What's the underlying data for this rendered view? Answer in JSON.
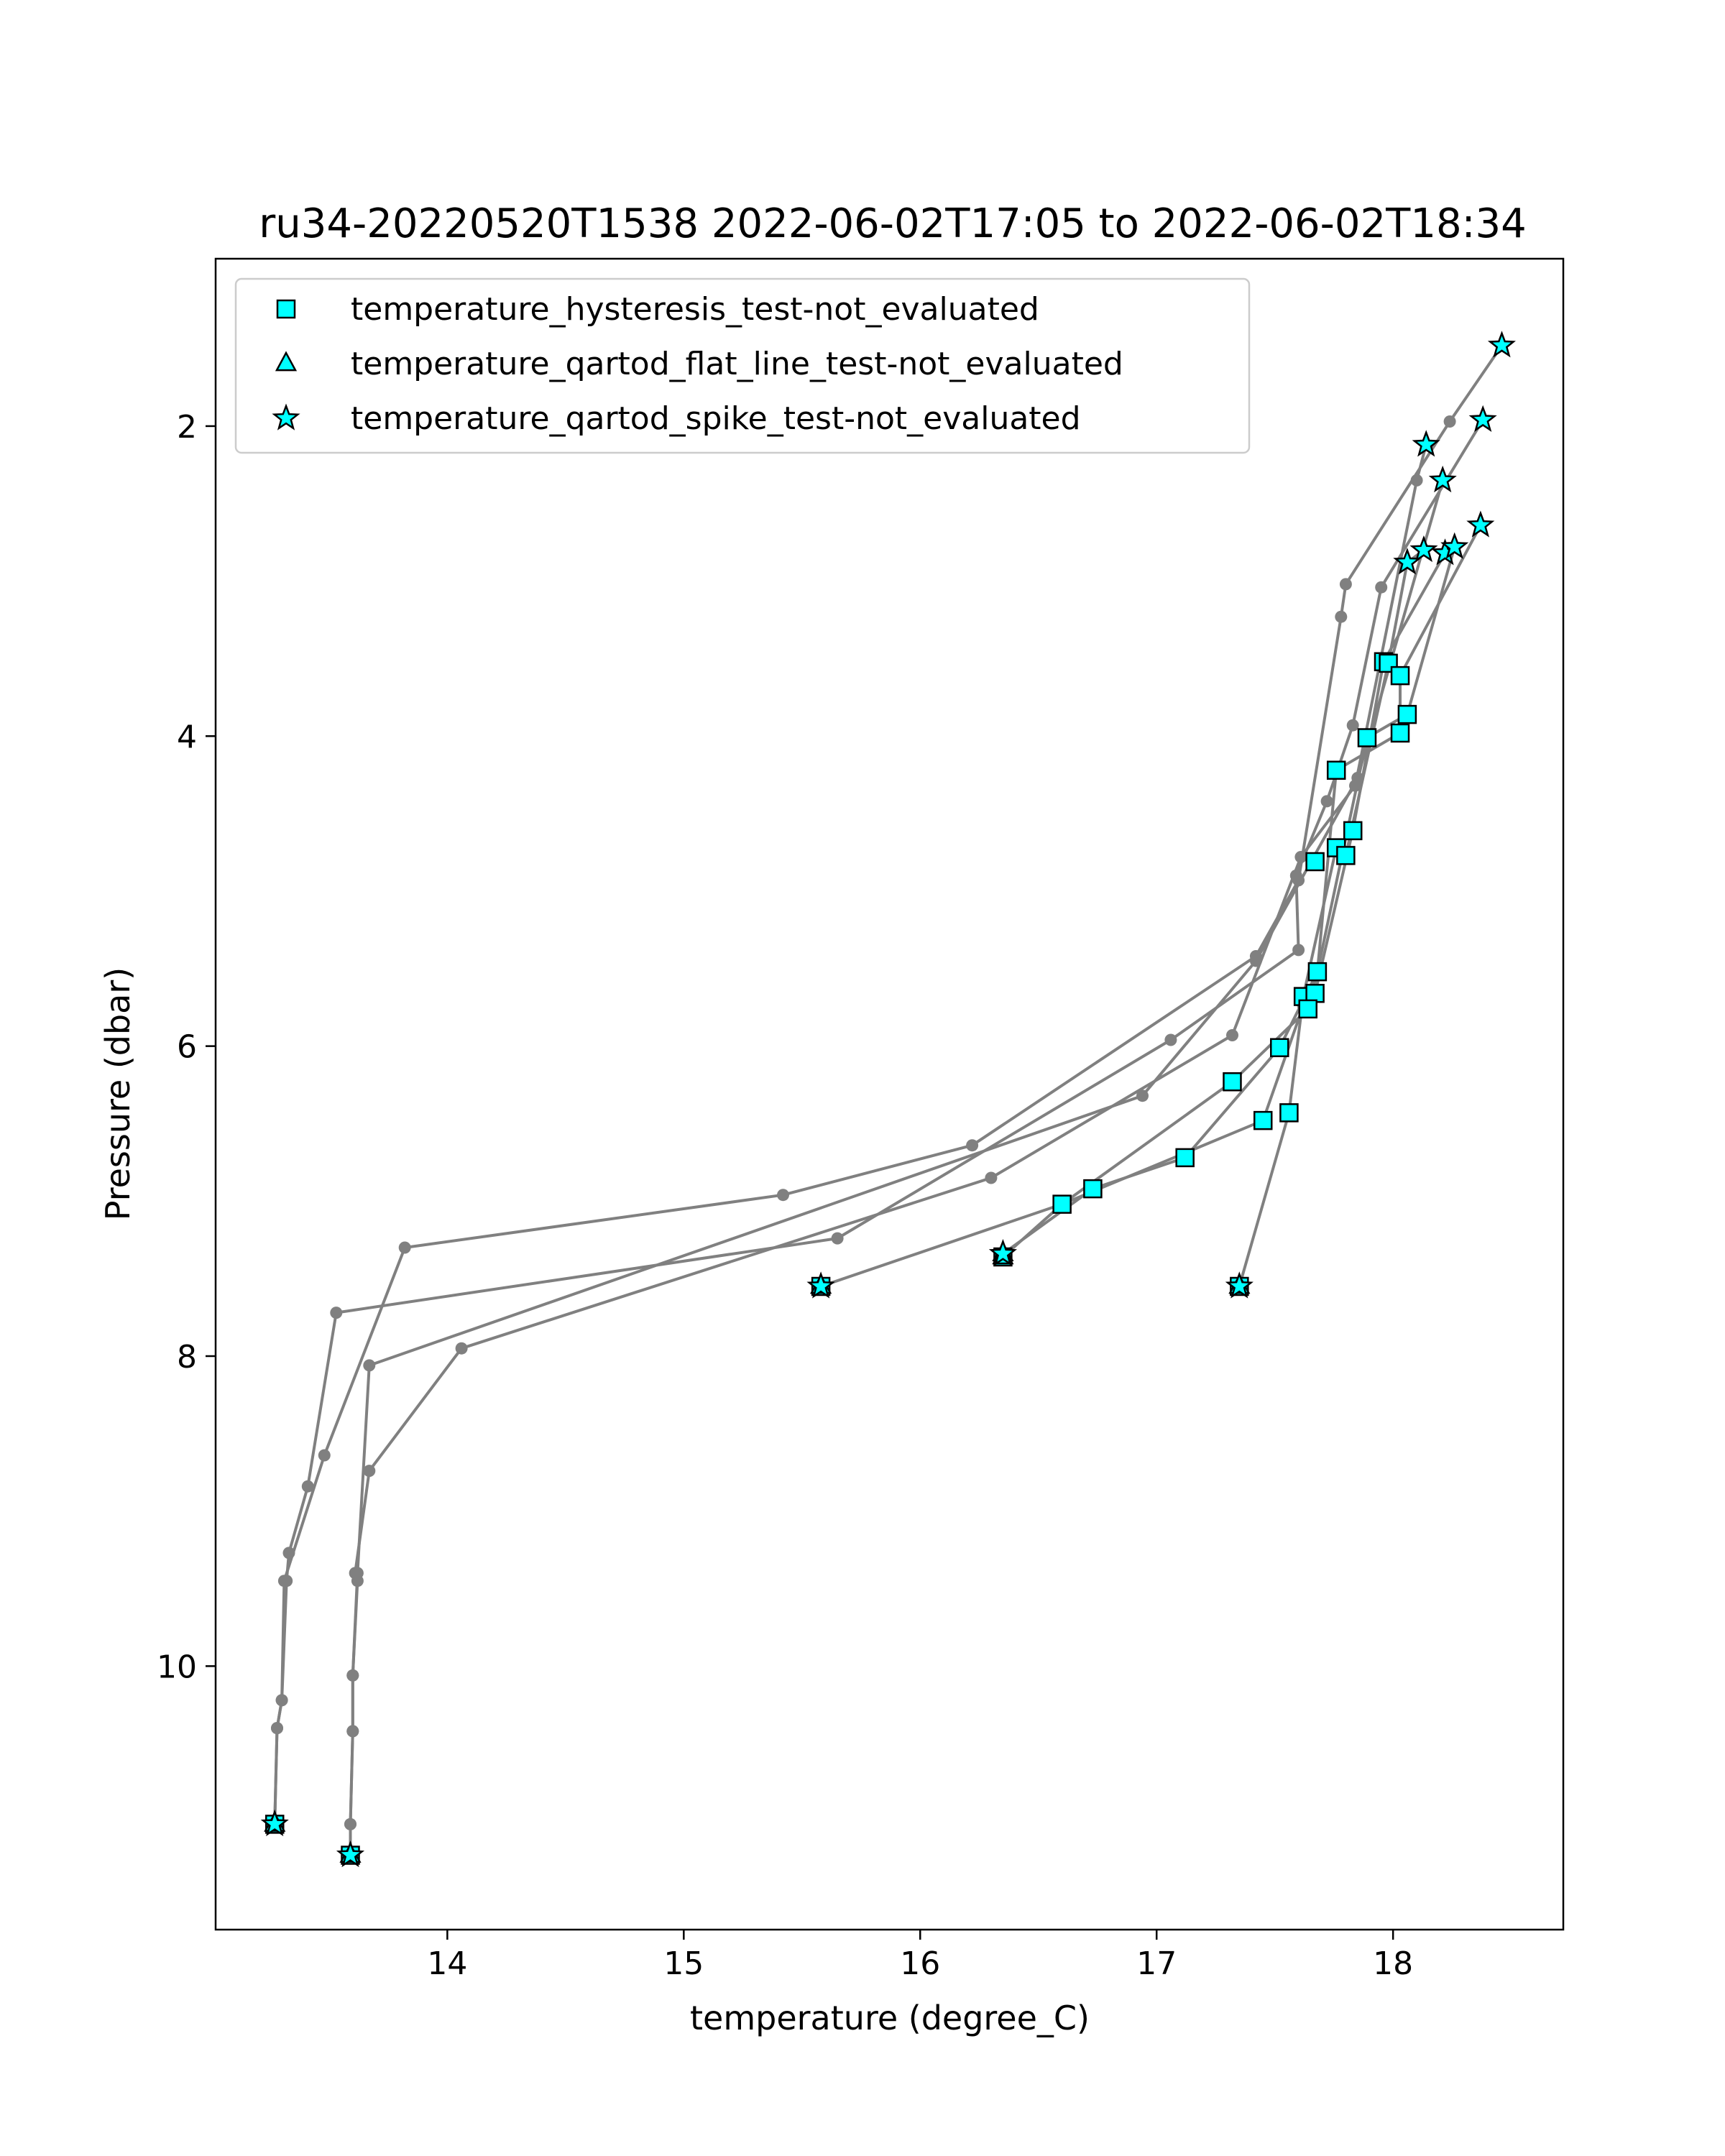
{
  "chart_data": {
    "type": "scatter",
    "title": "ru34-20220520T1538 2022-06-02T17:05 to 2022-06-02T18:34",
    "xlabel": "temperature (degree_C)",
    "ylabel": "Pressure (dbar)",
    "xlim": [
      13.02,
      18.72
    ],
    "ylim": [
      11.7,
      0.92
    ],
    "y_inverted": true,
    "grid": false,
    "legend_position": "upper-left",
    "xticks": [
      {
        "value": 14,
        "label": "14"
      },
      {
        "value": 15,
        "label": "15"
      },
      {
        "value": 16,
        "label": "16"
      },
      {
        "value": 17,
        "label": "17"
      },
      {
        "value": 18,
        "label": "18"
      }
    ],
    "yticks": [
      {
        "value": 2,
        "label": "2"
      },
      {
        "value": 4,
        "label": "4"
      },
      {
        "value": 6,
        "label": "6"
      },
      {
        "value": 8,
        "label": "8"
      },
      {
        "value": 10,
        "label": "10"
      }
    ],
    "line_color": "#808080",
    "marker_face_color": "#00ffff",
    "profiles": [
      {
        "points": [
          [
            18.46,
            1.48
          ],
          [
            18.24,
            1.97
          ],
          [
            17.8,
            3.02
          ],
          [
            17.78,
            3.23
          ],
          [
            17.6,
            4.93
          ],
          [
            17.42,
            5.42
          ],
          [
            16.22,
            6.64
          ],
          [
            15.42,
            6.96
          ],
          [
            13.82,
            7.3
          ],
          [
            13.48,
            8.64
          ],
          [
            13.31,
            9.45
          ],
          [
            13.3,
            10.22
          ],
          [
            13.28,
            10.4
          ],
          [
            13.27,
            11.02
          ]
        ]
      },
      {
        "points": [
          [
            18.38,
            1.96
          ],
          [
            17.95,
            3.04
          ],
          [
            17.83,
            3.93
          ],
          [
            17.72,
            4.42
          ],
          [
            17.59,
            4.9
          ],
          [
            17.6,
            5.38
          ],
          [
            17.06,
            5.96
          ],
          [
            15.65,
            7.24
          ],
          [
            13.53,
            7.72
          ],
          [
            13.41,
            8.84
          ],
          [
            13.33,
            9.27
          ],
          [
            13.32,
            9.45
          ],
          [
            13.3,
            10.22
          ],
          [
            13.28,
            10.4
          ],
          [
            13.27,
            11.02
          ]
        ]
      },
      {
        "points": [
          [
            18.14,
            2.12
          ],
          [
            18.1,
            2.35
          ],
          [
            17.84,
            4.32
          ],
          [
            17.61,
            4.78
          ],
          [
            17.32,
            5.93
          ],
          [
            16.3,
            6.85
          ],
          [
            14.06,
            7.95
          ],
          [
            13.67,
            8.74
          ],
          [
            13.61,
            9.4
          ],
          [
            13.62,
            9.45
          ],
          [
            13.6,
            10.06
          ],
          [
            13.6,
            10.42
          ],
          [
            13.59,
            11.02
          ],
          [
            13.59,
            11.22
          ]
        ]
      },
      {
        "points": [
          [
            18.21,
            2.35
          ],
          [
            17.85,
            4.27
          ],
          [
            17.42,
            5.45
          ],
          [
            16.94,
            6.32
          ],
          [
            13.67,
            8.06
          ],
          [
            13.62,
            9.4
          ],
          [
            13.6,
            10.06
          ],
          [
            13.6,
            10.42
          ],
          [
            13.59,
            11.02
          ],
          [
            13.59,
            11.22
          ]
        ]
      },
      {
        "points": [
          [
            18.37,
            2.64
          ],
          [
            18.03,
            3.61
          ],
          [
            18.03,
            3.98
          ],
          [
            17.76,
            4.22
          ],
          [
            17.68,
            5.52
          ],
          [
            17.64,
            5.76
          ],
          [
            17.32,
            6.23
          ],
          [
            16.6,
            7.02
          ],
          [
            15.58,
            7.55
          ]
        ]
      },
      {
        "points": [
          [
            18.26,
            2.78
          ],
          [
            18.06,
            3.86
          ],
          [
            17.89,
            4.01
          ],
          [
            17.68,
            5.52
          ],
          [
            17.52,
            6.01
          ],
          [
            17.12,
            6.72
          ],
          [
            16.73,
            6.92
          ],
          [
            16.35,
            7.34
          ]
        ]
      },
      {
        "points": [
          [
            18.22,
            2.82
          ],
          [
            17.96,
            3.52
          ],
          [
            17.83,
            4.61
          ],
          [
            17.67,
            5.66
          ],
          [
            17.62,
            5.74
          ],
          [
            17.45,
            6.48
          ],
          [
            16.6,
            7.02
          ],
          [
            16.35,
            7.36
          ]
        ]
      },
      {
        "points": [
          [
            18.13,
            2.8
          ],
          [
            18.06,
            2.88
          ],
          [
            17.98,
            3.53
          ],
          [
            17.8,
            4.77
          ],
          [
            17.76,
            4.72
          ],
          [
            17.62,
            5.68
          ],
          [
            17.56,
            6.43
          ],
          [
            17.35,
            7.55
          ]
        ]
      }
    ],
    "series": [
      {
        "name": "temperature_hysteresis_test-not_evaluated",
        "marker": "square",
        "points": [
          [
            17.96,
            3.52
          ],
          [
            17.98,
            3.53
          ],
          [
            18.03,
            3.61
          ],
          [
            18.06,
            3.86
          ],
          [
            18.03,
            3.98
          ],
          [
            17.89,
            4.01
          ],
          [
            17.76,
            4.22
          ],
          [
            17.83,
            4.61
          ],
          [
            17.76,
            4.72
          ],
          [
            17.8,
            4.77
          ],
          [
            17.67,
            4.81
          ],
          [
            17.68,
            5.52
          ],
          [
            17.62,
            5.68
          ],
          [
            17.67,
            5.66
          ],
          [
            17.64,
            5.76
          ],
          [
            17.52,
            6.01
          ],
          [
            17.32,
            6.23
          ],
          [
            17.56,
            6.43
          ],
          [
            17.45,
            6.48
          ],
          [
            17.12,
            6.72
          ],
          [
            16.73,
            6.92
          ],
          [
            16.6,
            7.02
          ],
          [
            16.35,
            7.36
          ],
          [
            15.58,
            7.55
          ],
          [
            17.35,
            7.55
          ],
          [
            13.27,
            11.02
          ],
          [
            13.59,
            11.22
          ]
        ]
      },
      {
        "name": "temperature_qartod_flat_line_test-not_evaluated",
        "marker": "triangle",
        "points": [
          [
            15.58,
            7.55
          ],
          [
            16.35,
            7.34
          ],
          [
            16.35,
            7.36
          ],
          [
            17.35,
            7.55
          ],
          [
            13.27,
            11.02
          ],
          [
            13.59,
            11.22
          ]
        ]
      },
      {
        "name": "temperature_qartod_spike_test-not_evaluated",
        "marker": "star",
        "points": [
          [
            18.46,
            1.48
          ],
          [
            18.38,
            1.96
          ],
          [
            18.14,
            2.12
          ],
          [
            18.21,
            2.35
          ],
          [
            18.37,
            2.64
          ],
          [
            18.13,
            2.8
          ],
          [
            18.22,
            2.82
          ],
          [
            18.26,
            2.78
          ],
          [
            18.06,
            2.88
          ],
          [
            15.58,
            7.55
          ],
          [
            16.35,
            7.34
          ],
          [
            17.35,
            7.55
          ],
          [
            13.27,
            11.02
          ],
          [
            13.59,
            11.22
          ]
        ]
      }
    ]
  }
}
